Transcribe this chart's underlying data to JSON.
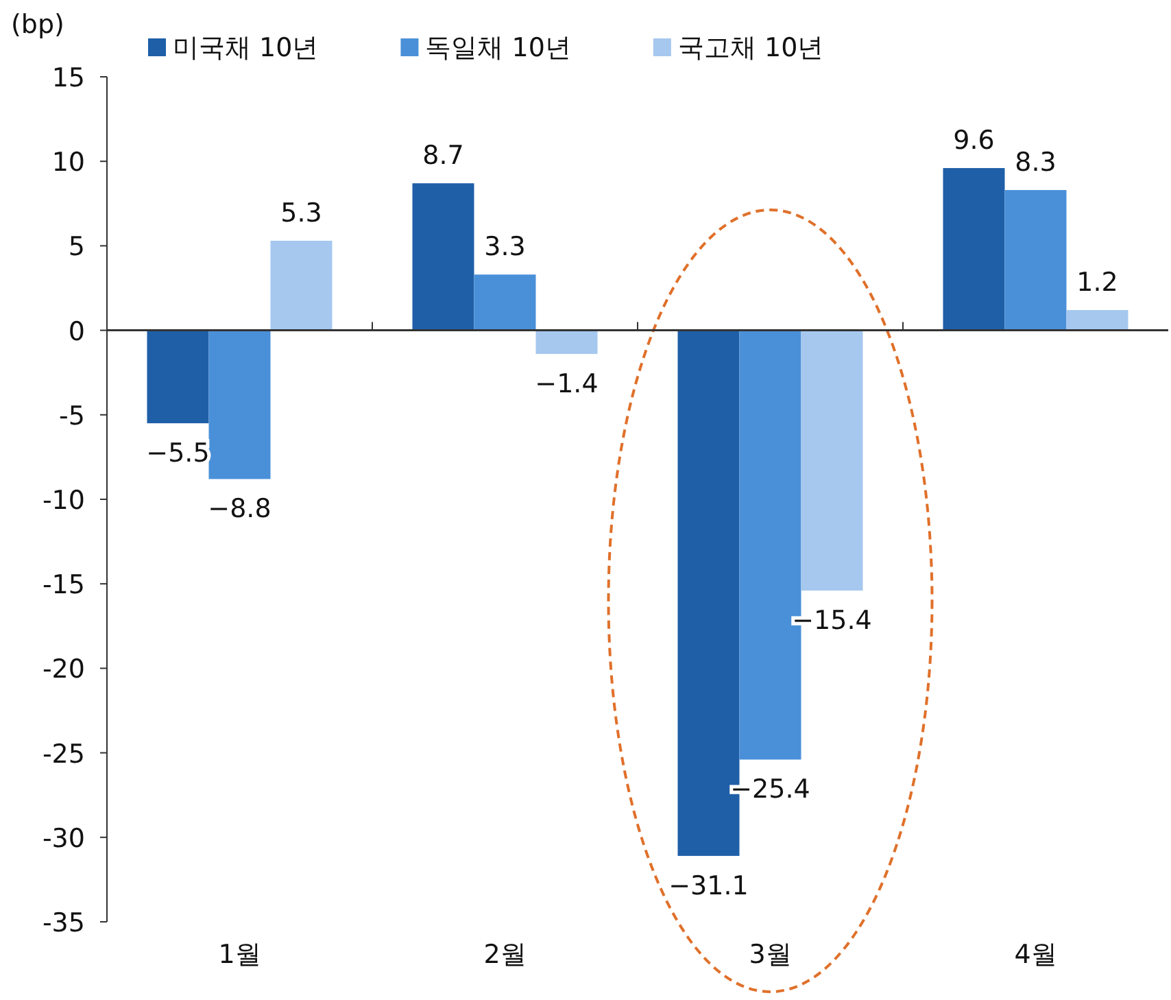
{
  "chart_data": {
    "type": "bar",
    "ylabel": "(bp)",
    "categories": [
      "1월",
      "2월",
      "3월",
      "4월"
    ],
    "series": [
      {
        "name": "미국채 10년",
        "color": "#1f5fa8",
        "values": [
          -5.5,
          8.7,
          -31.1,
          9.6
        ]
      },
      {
        "name": "독일채 10년",
        "color": "#4a90d9",
        "values": [
          -8.8,
          3.3,
          -25.4,
          8.3
        ]
      },
      {
        "name": "국고채 10년",
        "color": "#a6c8ef",
        "values": [
          5.3,
          -1.4,
          -15.4,
          1.2
        ]
      }
    ],
    "ylim": [
      -35,
      15
    ],
    "yticks": [
      -35,
      -30,
      -25,
      -20,
      -15,
      -10,
      -5,
      0,
      5,
      10,
      15
    ],
    "data_labels": true,
    "legend": "top"
  }
}
